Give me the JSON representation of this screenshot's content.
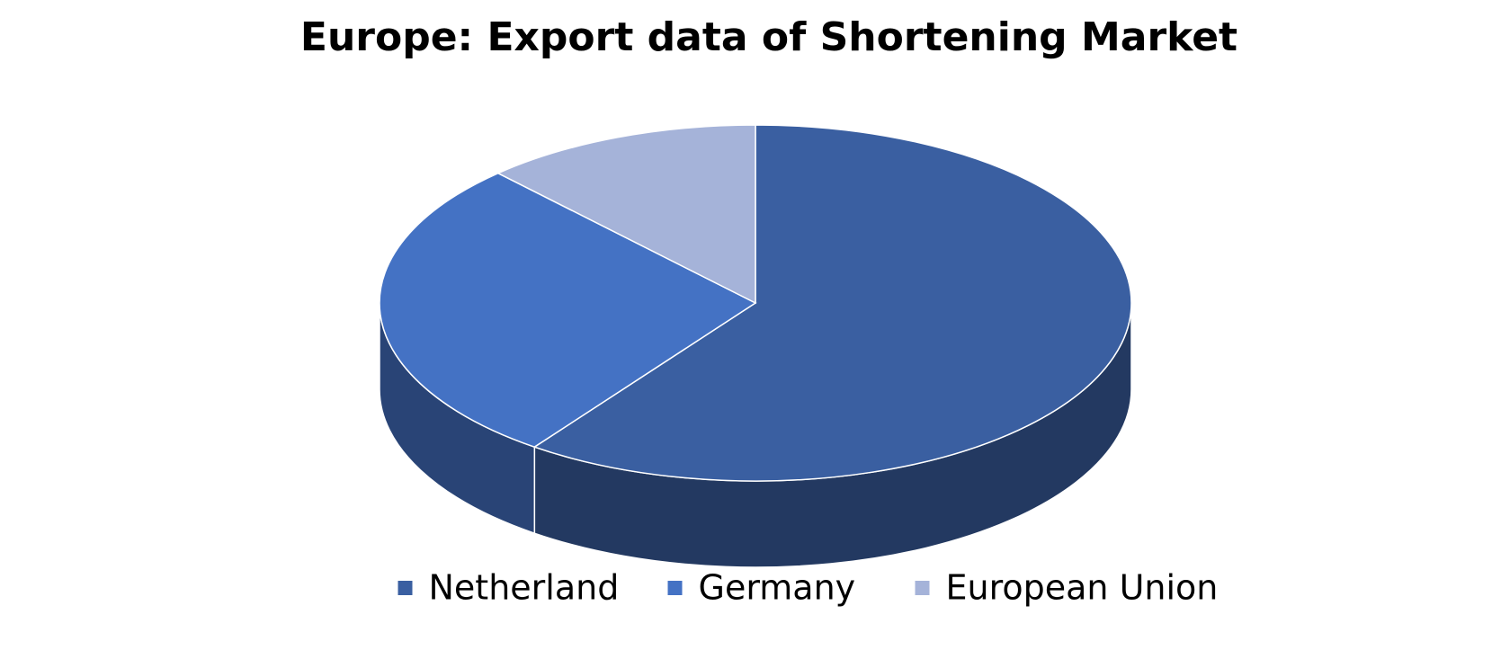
{
  "chart_data": {
    "type": "pie",
    "title": "Europe: Export data of Shortening Market",
    "categories": [
      "Netherland",
      "Germany",
      "European Union"
    ],
    "values": [
      60,
      28,
      12
    ],
    "colors": [
      "#3a5fa1",
      "#4472c4",
      "#a5b3d9"
    ],
    "legend": "bottom"
  }
}
